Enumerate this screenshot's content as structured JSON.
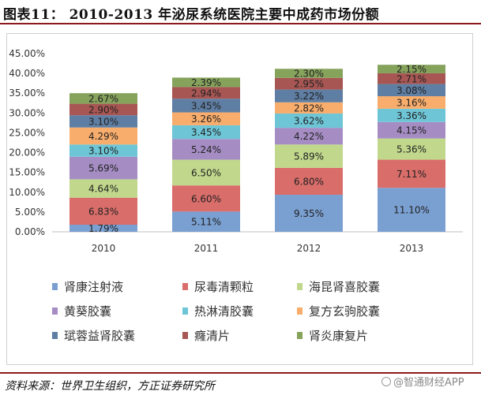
{
  "header": {
    "title": "图表11： 2010-2013 年泌尿系统医院主要中成药市场份额"
  },
  "chart_data": {
    "type": "bar",
    "stacked": true,
    "categories": [
      "2010",
      "2011",
      "2012",
      "2013"
    ],
    "ylim": [
      0,
      45
    ],
    "yticks": [
      0,
      5,
      10,
      15,
      20,
      25,
      30,
      35,
      40,
      45
    ],
    "ytick_labels": [
      "0.00%",
      "5.00%",
      "10.00%",
      "15.00%",
      "20.00%",
      "25.00%",
      "30.00%",
      "35.00%",
      "40.00%",
      "45.00%"
    ],
    "xlabel": "",
    "ylabel": "",
    "legend_position": "bottom",
    "series": [
      {
        "name": "肾康注射液",
        "color": "#7a9fd1",
        "values": [
          1.79,
          5.11,
          9.35,
          11.1
        ],
        "labels": [
          "1.79%",
          "5.11%",
          "9.35%",
          "11.10%"
        ]
      },
      {
        "name": "尿毒清颗粒",
        "color": "#d96d6a",
        "values": [
          6.83,
          6.6,
          6.8,
          7.11
        ],
        "labels": [
          "6.83%",
          "6.60%",
          "6.80%",
          "7.11%"
        ]
      },
      {
        "name": "海昆肾喜胶囊",
        "color": "#c1d88c",
        "values": [
          4.64,
          6.5,
          5.89,
          5.36
        ],
        "labels": [
          "4.64%",
          "6.50%",
          "5.89%",
          "5.36%"
        ]
      },
      {
        "name": "黄葵胶囊",
        "color": "#a58dc4",
        "values": [
          5.69,
          5.24,
          4.22,
          4.15
        ],
        "labels": [
          "5.69%",
          "5.24%",
          "4.22%",
          "4.15%"
        ]
      },
      {
        "name": "热淋清胶囊",
        "color": "#6ec5d6",
        "values": [
          3.1,
          3.45,
          3.62,
          3.36
        ],
        "labels": [
          "3.10%",
          "3.45%",
          "3.62%",
          "3.36%"
        ]
      },
      {
        "name": "复方玄驹胶囊",
        "color": "#f8ad6c",
        "values": [
          4.29,
          3.26,
          2.82,
          3.16
        ],
        "labels": [
          "4.29%",
          "3.26%",
          "2.82%",
          "3.16%"
        ]
      },
      {
        "name": "珷蓉益肾胶囊",
        "color": "#5f7ea3",
        "values": [
          3.1,
          3.45,
          3.22,
          3.08
        ],
        "labels": [
          "3.10%",
          "3.45%",
          "3.22%",
          "3.08%"
        ]
      },
      {
        "name": "癃清片",
        "color": "#a85653",
        "values": [
          2.9,
          2.94,
          2.95,
          2.71
        ],
        "labels": [
          "2.90%",
          "2.94%",
          "2.95%",
          "2.71%"
        ]
      },
      {
        "name": "肾炎康复片",
        "color": "#86a35c",
        "values": [
          2.67,
          2.39,
          2.3,
          2.15
        ],
        "labels": [
          "2.67%",
          "2.39%",
          "2.30%",
          "2.15%"
        ]
      }
    ]
  },
  "footer": {
    "source": "资料来源：世界卫生组织，方正证券研究所",
    "watermark": "@智通财经APP"
  }
}
